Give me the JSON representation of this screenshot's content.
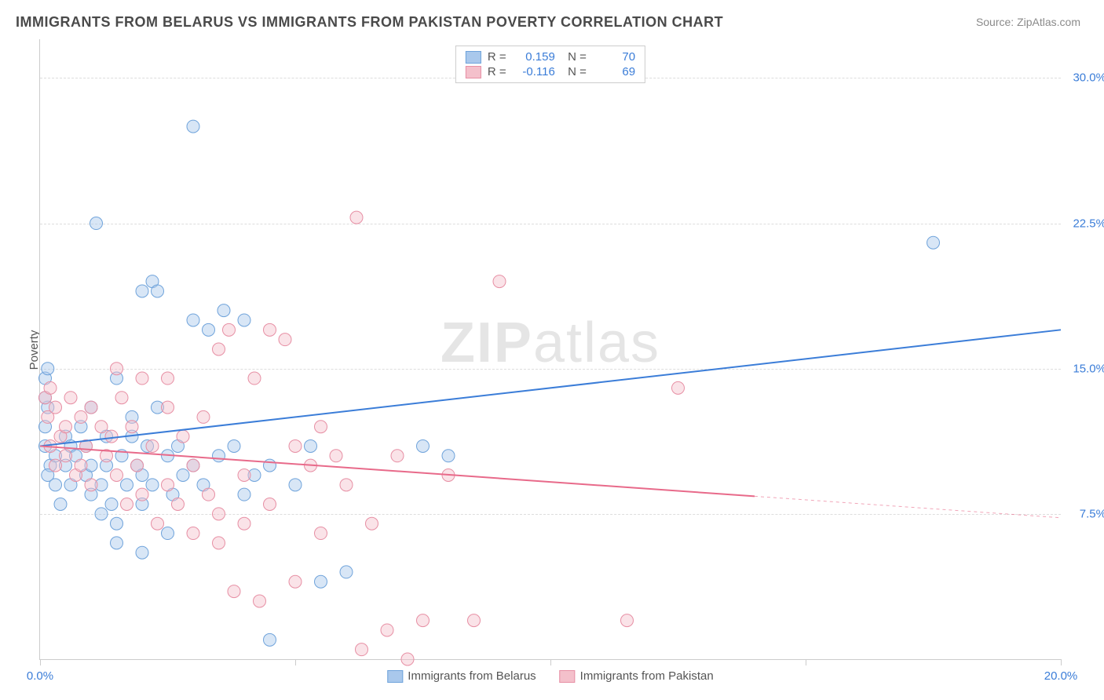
{
  "title": "IMMIGRANTS FROM BELARUS VS IMMIGRANTS FROM PAKISTAN POVERTY CORRELATION CHART",
  "source": "Source: ZipAtlas.com",
  "watermark_bold": "ZIP",
  "watermark_rest": "atlas",
  "ylabel": "Poverty",
  "chart": {
    "type": "scatter-correlation",
    "xlim": [
      0,
      20
    ],
    "ylim": [
      0,
      32
    ],
    "x_ticks": [
      0,
      5,
      10,
      15,
      20
    ],
    "x_tick_labels": {
      "0": "0.0%",
      "20": "20.0%"
    },
    "x_tick_color": "#3b7dd8",
    "y_ticks": [
      7.5,
      15.0,
      22.5,
      30.0
    ],
    "y_tick_labels": [
      "7.5%",
      "15.0%",
      "22.5%",
      "30.0%"
    ],
    "y_tick_color": "#3b7dd8",
    "grid_color": "#dddddd",
    "background": "#ffffff",
    "marker_radius": 8,
    "marker_opacity": 0.45,
    "line_width": 2,
    "series": [
      {
        "name": "Immigrants from Belarus",
        "color_fill": "#a9c8ec",
        "color_stroke": "#6fa3db",
        "line_color": "#3b7dd8",
        "R": "0.159",
        "N": "70",
        "trend": {
          "x1": 0,
          "y1": 11.0,
          "x2": 20,
          "y2": 17.0,
          "solid_until_x": 20
        },
        "points": [
          [
            0.1,
            14.5
          ],
          [
            0.15,
            13.0
          ],
          [
            0.1,
            12.0
          ],
          [
            0.1,
            11.0
          ],
          [
            0.2,
            10.0
          ],
          [
            0.15,
            9.5
          ],
          [
            0.15,
            15.0
          ],
          [
            0.1,
            13.5
          ],
          [
            0.3,
            10.5
          ],
          [
            0.3,
            9.0
          ],
          [
            0.4,
            8.0
          ],
          [
            0.5,
            11.5
          ],
          [
            0.5,
            10.0
          ],
          [
            0.6,
            9.0
          ],
          [
            0.6,
            11.0
          ],
          [
            0.7,
            10.5
          ],
          [
            0.8,
            12.0
          ],
          [
            0.9,
            11.0
          ],
          [
            0.9,
            9.5
          ],
          [
            1.0,
            10.0
          ],
          [
            1.0,
            8.5
          ],
          [
            1.0,
            13.0
          ],
          [
            1.1,
            22.5
          ],
          [
            1.2,
            7.5
          ],
          [
            1.2,
            9.0
          ],
          [
            1.3,
            10.0
          ],
          [
            1.3,
            11.5
          ],
          [
            1.4,
            8.0
          ],
          [
            1.5,
            14.5
          ],
          [
            1.5,
            6.0
          ],
          [
            1.6,
            10.5
          ],
          [
            1.7,
            9.0
          ],
          [
            1.8,
            11.5
          ],
          [
            1.8,
            12.5
          ],
          [
            1.9,
            10.0
          ],
          [
            2.0,
            19.0
          ],
          [
            2.0,
            9.5
          ],
          [
            2.0,
            8.0
          ],
          [
            2.1,
            11.0
          ],
          [
            2.2,
            19.5
          ],
          [
            2.2,
            9.0
          ],
          [
            2.3,
            13.0
          ],
          [
            2.3,
            19.0
          ],
          [
            2.5,
            10.5
          ],
          [
            2.5,
            6.5
          ],
          [
            2.6,
            8.5
          ],
          [
            2.7,
            11.0
          ],
          [
            2.8,
            9.5
          ],
          [
            3.0,
            17.5
          ],
          [
            3.0,
            10.0
          ],
          [
            3.0,
            27.5
          ],
          [
            3.2,
            9.0
          ],
          [
            3.3,
            17.0
          ],
          [
            3.5,
            10.5
          ],
          [
            3.6,
            18.0
          ],
          [
            3.8,
            11.0
          ],
          [
            4.0,
            8.5
          ],
          [
            4.0,
            17.5
          ],
          [
            4.2,
            9.5
          ],
          [
            4.5,
            10.0
          ],
          [
            4.5,
            1.0
          ],
          [
            5.0,
            9.0
          ],
          [
            5.3,
            11.0
          ],
          [
            5.5,
            4.0
          ],
          [
            6.0,
            4.5
          ],
          [
            7.5,
            11.0
          ],
          [
            8.0,
            10.5
          ],
          [
            17.5,
            21.5
          ],
          [
            2.0,
            5.5
          ],
          [
            1.5,
            7.0
          ]
        ]
      },
      {
        "name": "Immigrants from Pakistan",
        "color_fill": "#f4c0cb",
        "color_stroke": "#e78fa4",
        "line_color": "#e86a8a",
        "R": "-0.116",
        "N": "69",
        "trend": {
          "x1": 0,
          "y1": 11.0,
          "x2": 20,
          "y2": 7.3,
          "solid_until_x": 14
        },
        "points": [
          [
            0.1,
            13.5
          ],
          [
            0.15,
            12.5
          ],
          [
            0.2,
            14.0
          ],
          [
            0.2,
            11.0
          ],
          [
            0.3,
            13.0
          ],
          [
            0.3,
            10.0
          ],
          [
            0.4,
            11.5
          ],
          [
            0.5,
            12.0
          ],
          [
            0.5,
            10.5
          ],
          [
            0.6,
            13.5
          ],
          [
            0.7,
            9.5
          ],
          [
            0.8,
            12.5
          ],
          [
            0.8,
            10.0
          ],
          [
            0.9,
            11.0
          ],
          [
            1.0,
            13.0
          ],
          [
            1.0,
            9.0
          ],
          [
            1.2,
            12.0
          ],
          [
            1.3,
            10.5
          ],
          [
            1.4,
            11.5
          ],
          [
            1.5,
            9.5
          ],
          [
            1.6,
            13.5
          ],
          [
            1.7,
            8.0
          ],
          [
            1.8,
            12.0
          ],
          [
            1.9,
            10.0
          ],
          [
            2.0,
            14.5
          ],
          [
            2.0,
            8.5
          ],
          [
            2.2,
            11.0
          ],
          [
            2.3,
            7.0
          ],
          [
            2.5,
            13.0
          ],
          [
            2.5,
            9.0
          ],
          [
            2.7,
            8.0
          ],
          [
            2.8,
            11.5
          ],
          [
            3.0,
            6.5
          ],
          [
            3.0,
            10.0
          ],
          [
            3.2,
            12.5
          ],
          [
            3.3,
            8.5
          ],
          [
            3.5,
            7.5
          ],
          [
            3.5,
            16.0
          ],
          [
            3.5,
            6.0
          ],
          [
            3.7,
            17.0
          ],
          [
            3.8,
            3.5
          ],
          [
            4.0,
            9.5
          ],
          [
            4.0,
            7.0
          ],
          [
            4.2,
            14.5
          ],
          [
            4.3,
            3.0
          ],
          [
            4.5,
            17.0
          ],
          [
            4.5,
            8.0
          ],
          [
            4.8,
            16.5
          ],
          [
            5.0,
            11.0
          ],
          [
            5.0,
            4.0
          ],
          [
            5.3,
            10.0
          ],
          [
            5.5,
            6.5
          ],
          [
            5.5,
            12.0
          ],
          [
            5.8,
            10.5
          ],
          [
            6.0,
            9.0
          ],
          [
            6.2,
            22.8
          ],
          [
            6.3,
            0.5
          ],
          [
            6.5,
            7.0
          ],
          [
            6.8,
            1.5
          ],
          [
            7.0,
            10.5
          ],
          [
            7.2,
            0.0
          ],
          [
            7.5,
            2.0
          ],
          [
            8.0,
            9.5
          ],
          [
            8.5,
            2.0
          ],
          [
            9.0,
            19.5
          ],
          [
            11.5,
            2.0
          ],
          [
            12.5,
            14.0
          ],
          [
            1.5,
            15.0
          ],
          [
            2.5,
            14.5
          ]
        ]
      }
    ]
  },
  "bottom_legend": [
    "Immigrants from Belarus",
    "Immigrants from Pakistan"
  ]
}
